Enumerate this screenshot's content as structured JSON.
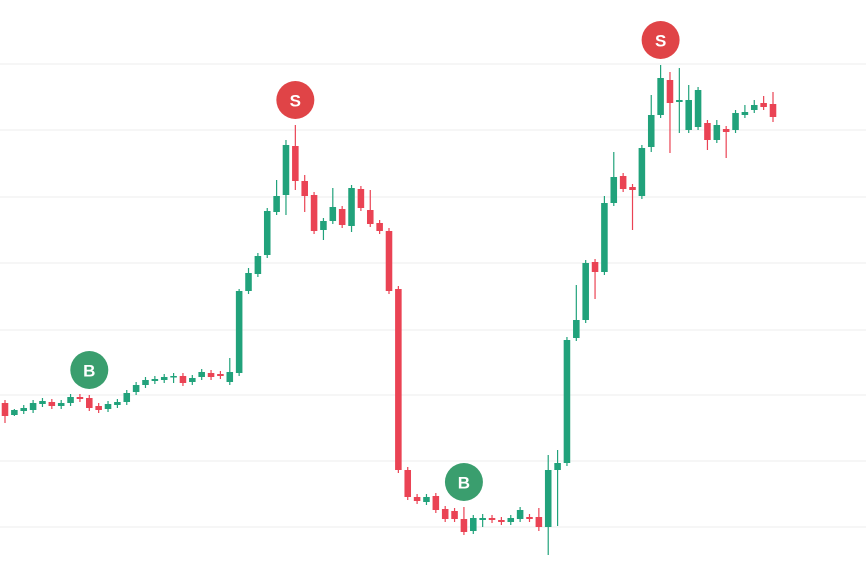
{
  "chart_data": {
    "type": "candlestick",
    "up_color": "#21a27b",
    "down_color": "#ea4354",
    "grid": true,
    "ylim": [
      0,
      576
    ],
    "yticks": [
      49,
      115,
      181,
      246,
      313,
      379,
      446,
      512
    ],
    "open": [
      173,
      161,
      165,
      166,
      172,
      174,
      170,
      173,
      179,
      178,
      170,
      167,
      171,
      174,
      184,
      191,
      195,
      196,
      199,
      200,
      194,
      199,
      203,
      202,
      194,
      203,
      285,
      302,
      321,
      364,
      381,
      430,
      395,
      381,
      346,
      355,
      367,
      350,
      387,
      366,
      353,
      345,
      287,
      106,
      79,
      74,
      80,
      67,
      65,
      57,
      45,
      56,
      58,
      56,
      54,
      57,
      59,
      59,
      49,
      106,
      113,
      238,
      256,
      314,
      304,
      373,
      400,
      389,
      380,
      429,
      461,
      496,
      474,
      446,
      449,
      453,
      436,
      447,
      446,
      461,
      466,
      473,
      472
    ],
    "high": [
      176,
      167,
      171,
      176,
      178,
      177,
      176,
      182,
      182,
      181,
      173,
      175,
      177,
      186,
      194,
      199,
      200,
      202,
      203,
      203,
      201,
      207,
      206,
      205,
      218,
      287,
      308,
      323,
      368,
      396,
      436,
      451,
      401,
      384,
      358,
      388,
      370,
      391,
      390,
      386,
      356,
      348,
      290,
      109,
      82,
      82,
      83,
      70,
      68,
      69,
      61,
      62,
      61,
      59,
      61,
      69,
      62,
      68,
      121,
      126,
      239,
      291,
      316,
      317,
      380,
      424,
      403,
      392,
      431,
      481,
      511,
      504,
      508,
      491,
      489,
      456,
      456,
      450,
      466,
      471,
      476,
      480,
      484
    ],
    "low": [
      153,
      160,
      162,
      163,
      169,
      167,
      167,
      170,
      174,
      165,
      163,
      164,
      168,
      171,
      181,
      188,
      192,
      193,
      193,
      190,
      191,
      196,
      196,
      197,
      191,
      200,
      282,
      299,
      318,
      361,
      361,
      386,
      364,
      342,
      336,
      352,
      348,
      344,
      365,
      349,
      342,
      282,
      103,
      76,
      72,
      71,
      63,
      54,
      54,
      41,
      42,
      49,
      53,
      51,
      51,
      54,
      54,
      45,
      21,
      50,
      110,
      235,
      253,
      277,
      301,
      370,
      384,
      346,
      377,
      424,
      458,
      423,
      443,
      443,
      446,
      426,
      433,
      418,
      443,
      458,
      463,
      466,
      454
    ],
    "close": [
      160,
      166,
      168,
      173,
      175,
      170,
      173,
      179,
      177,
      168,
      166,
      172,
      174,
      183,
      191,
      196,
      197,
      199,
      200,
      193,
      198,
      204,
      199,
      200,
      204,
      285,
      303,
      320,
      365,
      380,
      431,
      395,
      380,
      345,
      355,
      369,
      351,
      388,
      368,
      352,
      345,
      285,
      106,
      79,
      75,
      79,
      66,
      57,
      57,
      44,
      58,
      58,
      56,
      54,
      58,
      66,
      57,
      49,
      106,
      113,
      236,
      256,
      313,
      304,
      373,
      399,
      387,
      386,
      428,
      461,
      498,
      473,
      476,
      476,
      486,
      436,
      451,
      444,
      463,
      464,
      471,
      469,
      459
    ],
    "signals": [
      {
        "label": "B",
        "at": 9,
        "side": "buy"
      },
      {
        "label": "S",
        "at": 31,
        "side": "sell"
      },
      {
        "label": "B",
        "at": 49,
        "side": "buy"
      },
      {
        "label": "S",
        "at": 70,
        "side": "sell"
      }
    ],
    "buy_color": "#3a9e6e",
    "sell_color": "#e04447"
  }
}
